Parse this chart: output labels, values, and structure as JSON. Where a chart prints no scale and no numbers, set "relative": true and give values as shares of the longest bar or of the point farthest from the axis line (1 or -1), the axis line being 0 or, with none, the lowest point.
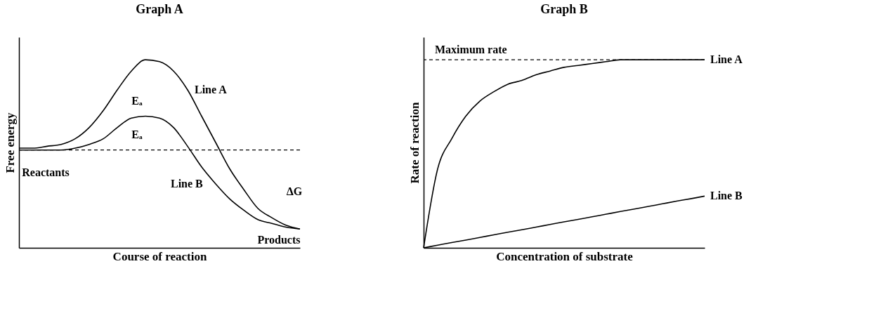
{
  "chart_data": [
    {
      "type": "line",
      "title": "Graph A",
      "xlabel": "Course of reaction",
      "ylabel": "Free energy",
      "relative": true,
      "categories": [
        null,
        null,
        null,
        null,
        null,
        null,
        null,
        null,
        null,
        null,
        null,
        null,
        null,
        null,
        null,
        null,
        null,
        null,
        null,
        null,
        null
      ],
      "series": [
        {
          "name": "Line A",
          "color": "#000000",
          "values": [
            0.53,
            0.53,
            0.54,
            0.55,
            0.58,
            0.64,
            0.73,
            0.84,
            0.94,
            1.0,
            0.99,
            0.94,
            0.84,
            0.7,
            0.56,
            0.42,
            0.31,
            0.21,
            0.16,
            0.12,
            0.1
          ]
        },
        {
          "name": "Line B",
          "color": "#000000",
          "values": [
            0.52,
            0.52,
            0.52,
            0.52,
            0.53,
            0.55,
            0.58,
            0.64,
            0.69,
            0.7,
            0.69,
            0.64,
            0.54,
            0.43,
            0.34,
            0.26,
            0.2,
            0.15,
            0.13,
            0.11,
            0.1
          ]
        }
      ],
      "ref_lines": [
        {
          "axis": "y",
          "value": 0.52,
          "line_style": "dashed",
          "color": "#000000"
        }
      ],
      "annotations": [
        "Reactants",
        "Products",
        "ΔG",
        "Eₐ",
        "Eₐ"
      ]
    },
    {
      "type": "line",
      "title": "Graph B",
      "xlabel": "Concentration of substrate",
      "ylabel": "Rate of reaction",
      "relative": true,
      "categories": [
        null,
        null,
        null,
        null,
        null,
        null,
        null,
        null,
        null,
        null,
        null,
        null,
        null,
        null,
        null,
        null,
        null,
        null,
        null,
        null,
        null
      ],
      "series": [
        {
          "name": "Line A",
          "color": "#000000",
          "values": [
            0,
            0.42,
            0.58,
            0.7,
            0.78,
            0.83,
            0.87,
            0.89,
            0.92,
            0.94,
            0.96,
            0.97,
            0.98,
            0.99,
            1.0,
            1.0,
            1.0,
            1.0,
            1.0,
            1.0,
            1.0
          ]
        },
        {
          "name": "Line B",
          "color": "#000000",
          "values": [
            0,
            0.014,
            0.028,
            0.041,
            0.055,
            0.069,
            0.083,
            0.096,
            0.11,
            0.124,
            0.138,
            0.151,
            0.165,
            0.179,
            0.193,
            0.206,
            0.22,
            0.234,
            0.248,
            0.261,
            0.275
          ]
        }
      ],
      "ref_lines": [
        {
          "axis": "y",
          "value": 1.0,
          "label": "Maximum rate",
          "line_style": "dashed",
          "color": "#000000"
        }
      ]
    }
  ]
}
